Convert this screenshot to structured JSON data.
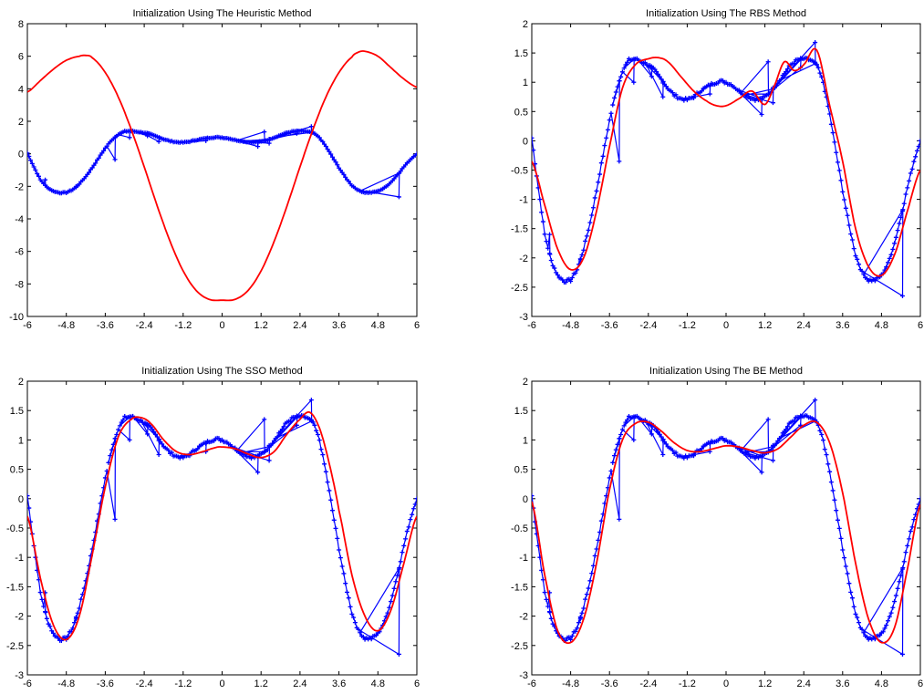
{
  "colors": {
    "data": "#0000ff",
    "fit": "#ff0000",
    "axis": "#000000",
    "background": "#ffffff"
  },
  "chart_data": [
    {
      "type": "line",
      "title": "Initialization Using The Heuristic Method",
      "xlim": [
        -6,
        6
      ],
      "ylim": [
        -10,
        8
      ],
      "xticks": [
        "-6",
        "-4.8",
        "-3.6",
        "-2.4",
        "-1.2",
        "0",
        "1.2",
        "2.4",
        "3.6",
        "4.8",
        "6"
      ],
      "yticks": [
        "-10",
        "-8",
        "-6",
        "-4",
        "-2",
        "0",
        "2",
        "4",
        "6",
        "8"
      ],
      "grid": false,
      "fit_curve": {
        "x": [
          -6,
          -5.6,
          -5.2,
          -4.8,
          -4.4,
          -4.2,
          -4,
          -3.6,
          -3.2,
          -2.8,
          -2.4,
          -2,
          -1.6,
          -1.2,
          -0.8,
          -0.4,
          0,
          0.4,
          0.8,
          1.2,
          1.6,
          2,
          2.4,
          2.8,
          3.2,
          3.6,
          4,
          4.2,
          4.4,
          4.8,
          5.2,
          5.6,
          6
        ],
        "y": [
          3.8,
          4.5,
          5.2,
          5.75,
          6.0,
          6.05,
          5.9,
          5.0,
          3.5,
          1.5,
          -0.8,
          -3.2,
          -5.4,
          -7.2,
          -8.4,
          -8.95,
          -9.0,
          -8.95,
          -8.4,
          -7.2,
          -5.4,
          -3.2,
          -0.8,
          1.5,
          3.5,
          5.0,
          5.95,
          6.25,
          6.3,
          6.0,
          5.3,
          4.6,
          4.1
        ]
      }
    },
    {
      "type": "line",
      "title": "Initialization Using The RBS Method",
      "xlim": [
        -6,
        6
      ],
      "ylim": [
        -3,
        2
      ],
      "xticks": [
        "-6",
        "-4.8",
        "-3.6",
        "-2.4",
        "-1.2",
        "0",
        "1.2",
        "2.4",
        "3.6",
        "4.8",
        "6"
      ],
      "yticks": [
        "-3",
        "-2.5",
        "-2",
        "-1.5",
        "-1",
        "-0.5",
        "0",
        "0.5",
        "1",
        "1.5",
        "2"
      ],
      "grid": false,
      "fit_curve": {
        "x": [
          -6,
          -5.6,
          -5.2,
          -4.8,
          -4.4,
          -4,
          -3.6,
          -3.2,
          -2.8,
          -2.4,
          -2.1,
          -1.8,
          -1.4,
          -1,
          -0.6,
          -0.3,
          0,
          0.4,
          0.8,
          1.2,
          1.5,
          1.8,
          2.1,
          2.4,
          2.8,
          3.2,
          3.6,
          4,
          4.4,
          4.8,
          5.2,
          5.6,
          6
        ],
        "y": [
          -0.35,
          -1.1,
          -1.85,
          -2.2,
          -2.0,
          -1.2,
          -0.1,
          0.9,
          1.3,
          1.4,
          1.42,
          1.35,
          1.1,
          0.85,
          0.68,
          0.6,
          0.6,
          0.72,
          0.85,
          0.62,
          0.95,
          1.35,
          1.2,
          1.3,
          1.55,
          0.6,
          -0.35,
          -1.5,
          -2.15,
          -2.3,
          -1.95,
          -1.2,
          -0.5
        ]
      }
    },
    {
      "type": "line",
      "title": "Initialization Using The SSO Method",
      "xlim": [
        -6,
        6
      ],
      "ylim": [
        -3,
        2
      ],
      "xticks": [
        "-6",
        "-4.8",
        "-3.6",
        "-2.4",
        "-1.2",
        "0",
        "1.2",
        "2.4",
        "3.6",
        "4.8",
        "6"
      ],
      "yticks": [
        "-3",
        "-2.5",
        "-2",
        "-1.5",
        "-1",
        "-0.5",
        "0",
        "0.5",
        "1",
        "1.5",
        "2"
      ],
      "grid": false,
      "fit_curve": {
        "x": [
          -6,
          -5.6,
          -5.2,
          -4.8,
          -4.4,
          -4,
          -3.6,
          -3.2,
          -2.8,
          -2.5,
          -2.2,
          -1.8,
          -1.4,
          -1,
          -0.6,
          -0.2,
          0,
          0.4,
          0.8,
          1.2,
          1.6,
          2,
          2.4,
          2.7,
          3,
          3.3,
          3.6,
          4,
          4.4,
          4.8,
          5.2,
          5.6,
          6
        ],
        "y": [
          -0.3,
          -1.35,
          -2.15,
          -2.4,
          -2.0,
          -0.95,
          0.2,
          1.05,
          1.35,
          1.38,
          1.28,
          1.0,
          0.8,
          0.75,
          0.8,
          0.87,
          0.88,
          0.85,
          0.76,
          0.7,
          0.8,
          1.1,
          1.35,
          1.47,
          1.2,
          0.6,
          -0.2,
          -1.3,
          -2.0,
          -2.25,
          -1.9,
          -1.1,
          -0.3
        ]
      }
    },
    {
      "type": "line",
      "title": "Initialization Using The BE Method",
      "xlim": [
        -6,
        6
      ],
      "ylim": [
        -3,
        2
      ],
      "xticks": [
        "-6",
        "-4.8",
        "-3.6",
        "-2.4",
        "-1.2",
        "0",
        "1.2",
        "2.4",
        "3.6",
        "4.8",
        "6"
      ],
      "yticks": [
        "-3",
        "-2.5",
        "-2",
        "-1.5",
        "-1",
        "-0.5",
        "0",
        "0.5",
        "1",
        "1.5",
        "2"
      ],
      "grid": false,
      "fit_curve": {
        "x": [
          -6,
          -5.6,
          -5.2,
          -4.8,
          -4.4,
          -4,
          -3.6,
          -3.2,
          -2.8,
          -2.4,
          -2,
          -1.6,
          -1.2,
          -0.8,
          -0.4,
          0,
          0.4,
          0.8,
          1.2,
          1.6,
          2,
          2.4,
          2.8,
          3.2,
          3.6,
          4,
          4.4,
          4.8,
          5.2,
          5.6,
          6
        ],
        "y": [
          -0.05,
          -1.3,
          -2.25,
          -2.45,
          -2.05,
          -1.1,
          0.15,
          1.0,
          1.28,
          1.3,
          1.15,
          0.95,
          0.82,
          0.8,
          0.85,
          0.9,
          0.88,
          0.82,
          0.78,
          0.85,
          1.05,
          1.25,
          1.3,
          0.95,
          0.1,
          -1.1,
          -2.05,
          -2.45,
          -2.2,
          -1.2,
          -0.1
        ]
      }
    }
  ],
  "data_series": {
    "x": [
      -6,
      -5.8,
      -5.6,
      -5.4,
      -5.2,
      -5,
      -4.8,
      -4.6,
      -4.4,
      -4.2,
      -4,
      -3.8,
      -3.6,
      -3.4,
      -3.2,
      -3,
      -2.8,
      -2.6,
      -2.4,
      -2.2,
      -2,
      -1.8,
      -1.6,
      -1.4,
      -1.2,
      -1,
      -0.8,
      -0.6,
      -0.4,
      -0.2,
      0,
      0.2,
      0.4,
      0.6,
      0.8,
      1,
      1.2,
      1.4,
      1.6,
      1.8,
      2,
      2.2,
      2.4,
      2.6,
      2.8,
      3,
      3.2,
      3.4,
      3.6,
      3.8,
      4,
      4.2,
      4.4,
      4.6,
      4.8,
      5,
      5.2,
      5.4,
      5.6,
      5.8,
      6
    ],
    "y": [
      0.05,
      -0.8,
      -1.6,
      -2.05,
      -2.3,
      -2.4,
      -2.38,
      -2.2,
      -1.85,
      -1.4,
      -0.85,
      -0.25,
      0.35,
      0.85,
      1.2,
      1.38,
      1.4,
      1.35,
      1.3,
      1.2,
      1.05,
      0.9,
      0.78,
      0.72,
      0.7,
      0.75,
      0.85,
      0.92,
      0.98,
      1.02,
      1.0,
      0.95,
      0.85,
      0.78,
      0.72,
      0.7,
      0.75,
      0.85,
      1.0,
      1.15,
      1.3,
      1.38,
      1.4,
      1.38,
      1.3,
      1.0,
      0.45,
      -0.2,
      -0.85,
      -1.45,
      -1.95,
      -2.25,
      -2.38,
      -2.38,
      -2.3,
      -2.1,
      -1.75,
      -1.3,
      -0.8,
      -0.35,
      0.02
    ],
    "outliers": [
      {
        "x": -5.45,
        "y": -1.6
      },
      {
        "x": -4.5,
        "y": -2.05
      },
      {
        "x": -3.3,
        "y": -0.35
      },
      {
        "x": -2.85,
        "y": 1.0
      },
      {
        "x": -2.3,
        "y": 1.1
      },
      {
        "x": -1.95,
        "y": 0.75
      },
      {
        "x": -0.5,
        "y": 0.8
      },
      {
        "x": 1.1,
        "y": 0.45
      },
      {
        "x": 1.3,
        "y": 1.35
      },
      {
        "x": 1.45,
        "y": 0.65
      },
      {
        "x": 2.3,
        "y": 1.25
      },
      {
        "x": 2.75,
        "y": 1.68
      },
      {
        "x": 5.45,
        "y": -2.65
      }
    ]
  }
}
